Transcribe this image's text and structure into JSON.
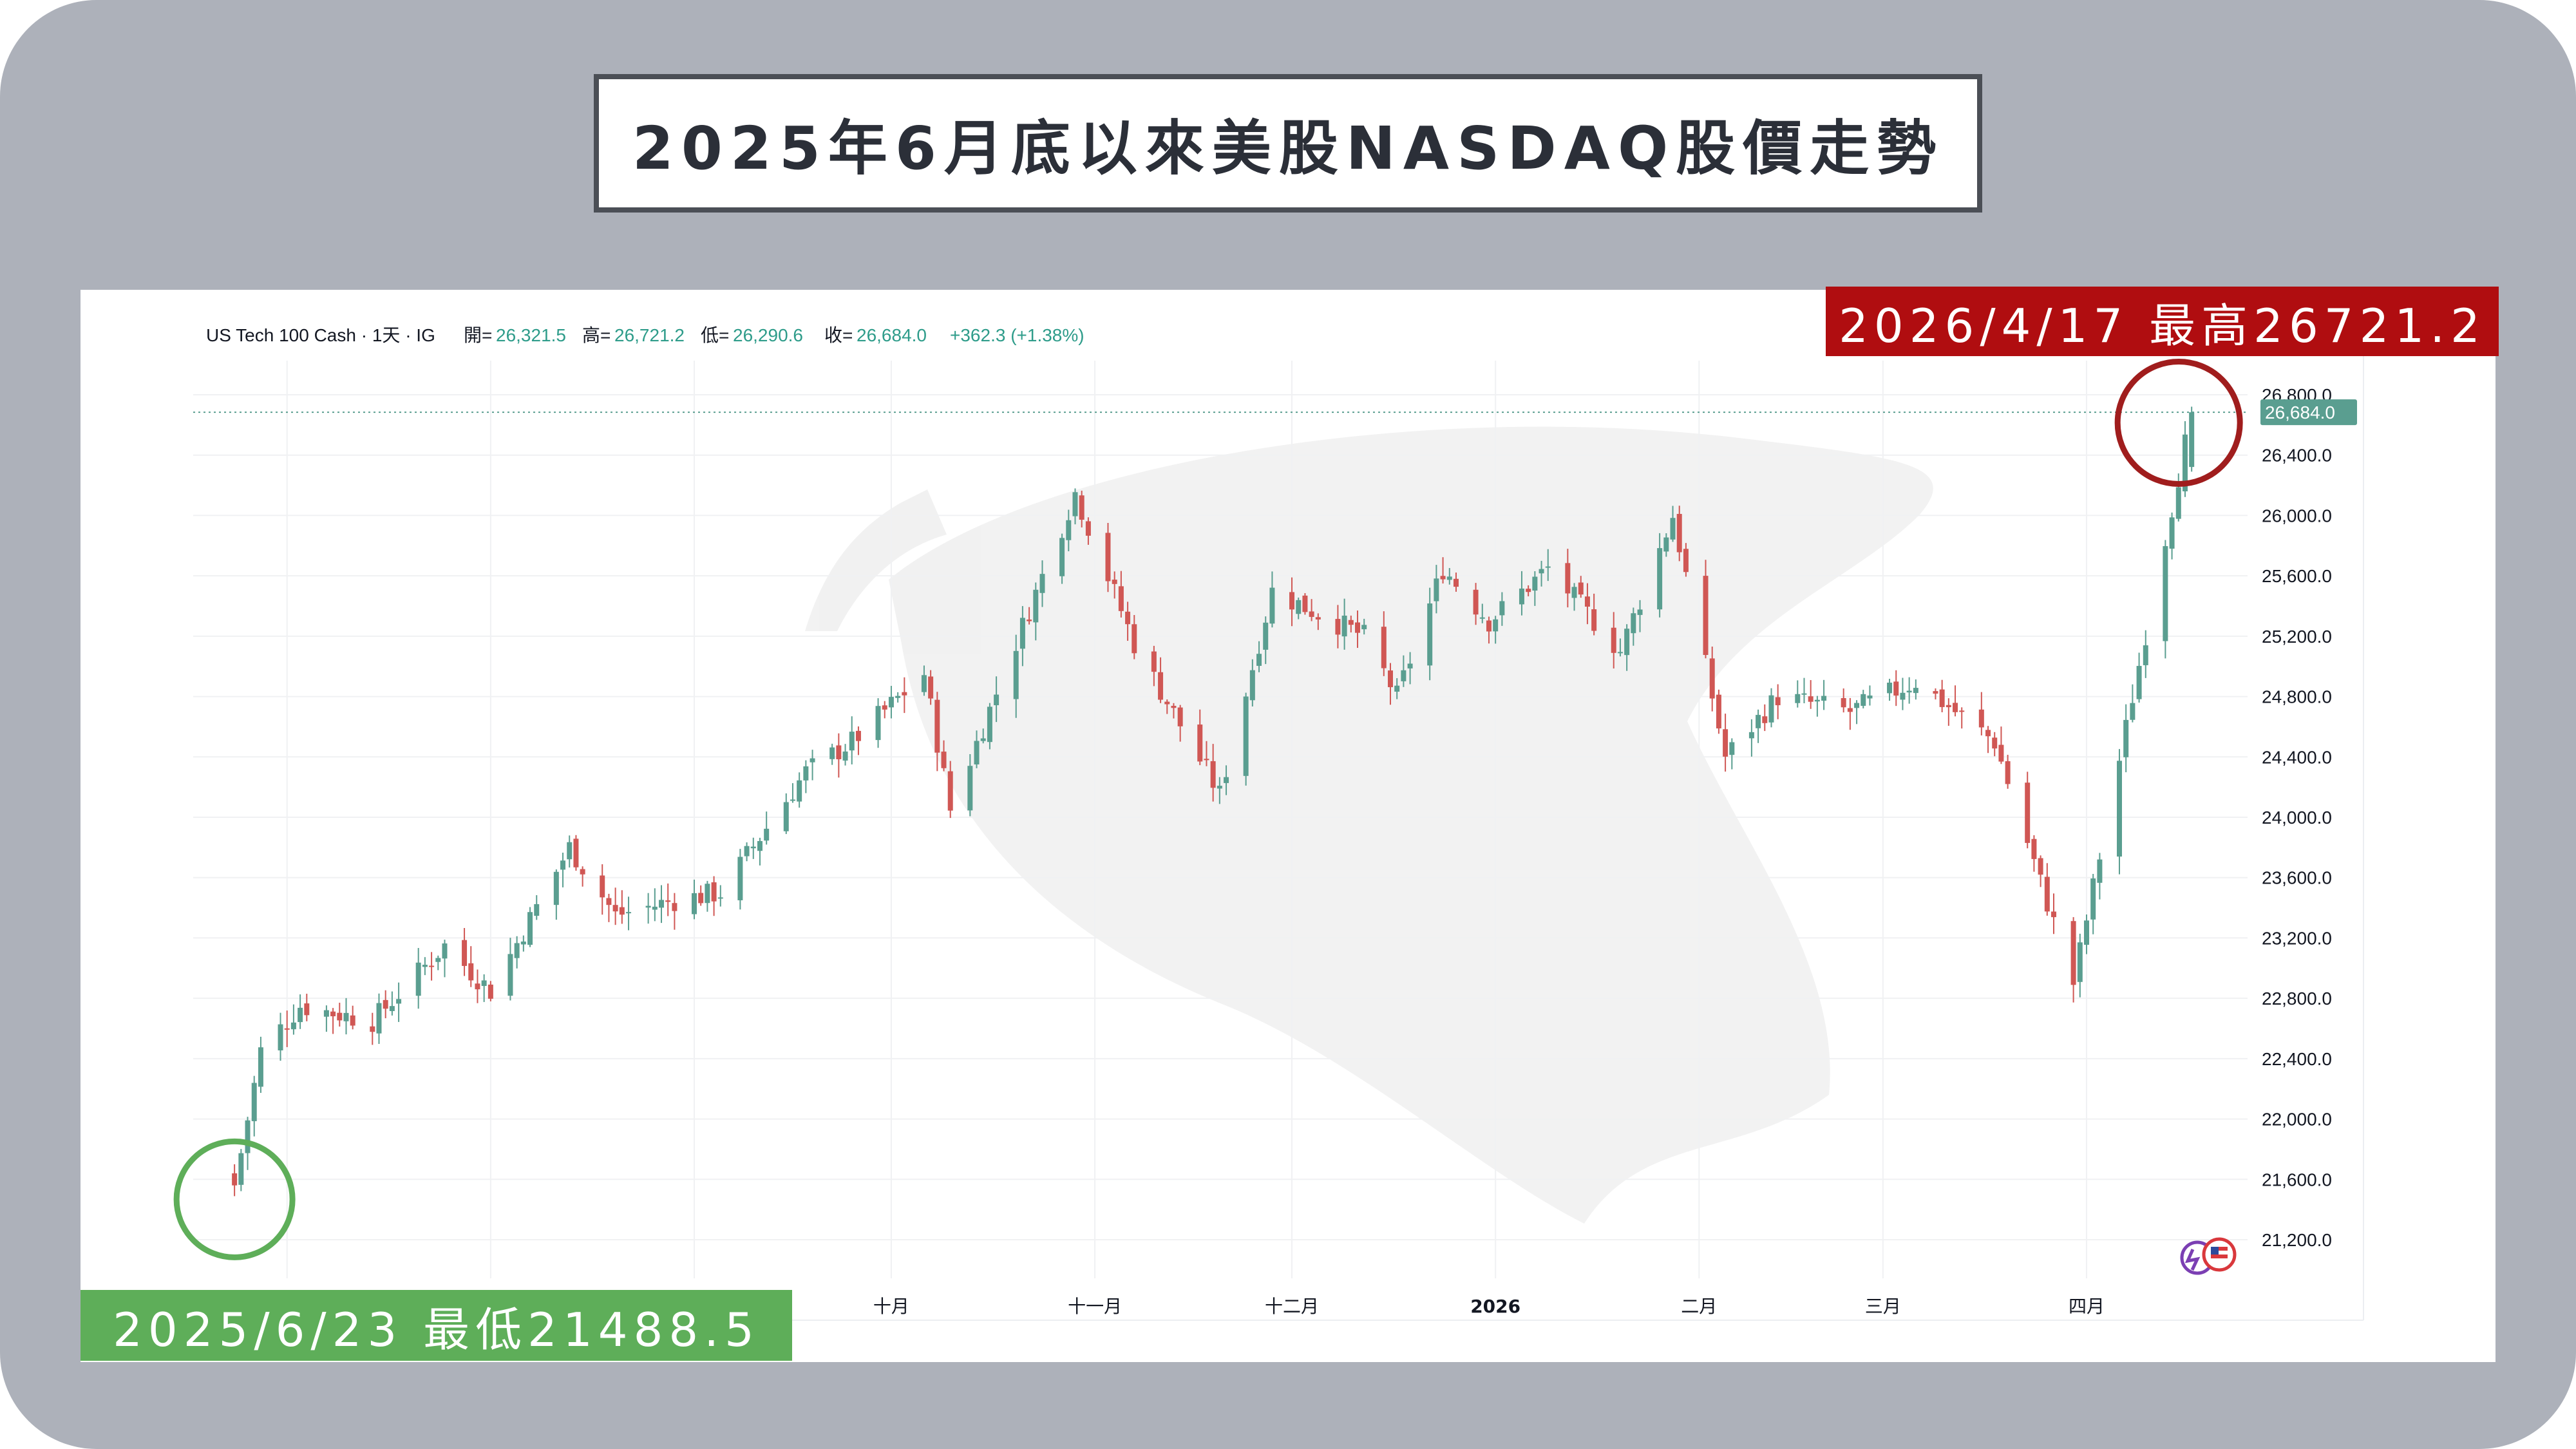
{
  "page_title": "2025年6月底以來美股NASDAQ股價走勢",
  "badges": {
    "high": "2026/4/17 最高26721.2",
    "low": "2025/6/23 最低21488.5"
  },
  "legend": {
    "symbol": "US Tech 100 Cash · 1天 · IG",
    "open_label": "開=",
    "open_value": "26,321.5",
    "high_label": "高=",
    "high_value": "26,721.2",
    "low_label": "低=",
    "low_value": "26,290.6",
    "close_label": "收=",
    "close_value": "26,684.0",
    "change": "+362.3 (+1.38%)"
  },
  "last_price_label": "26,684.0",
  "colors": {
    "up": "#5a9e90",
    "down": "#d05754",
    "high_marker": "#a01d1d",
    "low_marker": "#5eae59"
  },
  "chart_data": {
    "type": "candlestick",
    "symbol": "US Tech 100 Cash",
    "interval": "1天",
    "ylim": [
      21000,
      26950
    ],
    "y_ticks": [
      21200,
      21600,
      22000,
      22400,
      22800,
      23200,
      23600,
      24000,
      24400,
      24800,
      25200,
      25600,
      26000,
      26400,
      26800
    ],
    "y_tick_labels": [
      "21,200.0",
      "21,600.0",
      "22,000.0",
      "22,400.0",
      "22,800.0",
      "23,200.0",
      "23,600.0",
      "24,000.0",
      "24,400.0",
      "24,800.0",
      "25,200.0",
      "25,600.0",
      "26,000.0",
      "26,400.0",
      "26,800.0"
    ],
    "x_ticks": [
      {
        "date": "2025-10-01",
        "label": "十月"
      },
      {
        "date": "2025-11-01",
        "label": "十一月"
      },
      {
        "date": "2025-12-01",
        "label": "十二月"
      },
      {
        "date": "2026-01-01",
        "label": "2026"
      },
      {
        "date": "2026-02-01",
        "label": "二月"
      },
      {
        "date": "2026-03-01",
        "label": "三月"
      },
      {
        "date": "2026-04-01",
        "label": "四月"
      }
    ],
    "annotations": [
      {
        "date": "2025-06-23",
        "value": 21488.5,
        "text": "2025/6/23 最低21488.5"
      },
      {
        "date": "2026-04-17",
        "value": 26721.2,
        "text": "2026/4/17 最高26721.2"
      }
    ],
    "anchors": [
      [
        "2025-06-23",
        21550
      ],
      [
        "2025-06-27",
        22450
      ],
      [
        "2025-07-03",
        22750
      ],
      [
        "2025-07-14",
        22650
      ],
      [
        "2025-07-25",
        23150
      ],
      [
        "2025-08-01",
        22850
      ],
      [
        "2025-08-13",
        23800
      ],
      [
        "2025-08-20",
        23350
      ],
      [
        "2025-08-29",
        23450
      ],
      [
        "2025-09-05",
        23500
      ],
      [
        "2025-09-18",
        24300
      ],
      [
        "2025-09-25",
        24500
      ],
      [
        "2025-10-06",
        24950
      ],
      [
        "2025-10-10",
        24050
      ],
      [
        "2025-10-29",
        26150
      ],
      [
        "2025-11-07",
        25150
      ],
      [
        "2025-11-20",
        24150
      ],
      [
        "2025-11-28",
        25500
      ],
      [
        "2025-12-12",
        25200
      ],
      [
        "2025-12-17",
        24800
      ],
      [
        "2025-12-24",
        25650
      ],
      [
        "2025-12-31",
        25300
      ],
      [
        "2026-01-09",
        25650
      ],
      [
        "2026-01-20",
        25100
      ],
      [
        "2026-01-28",
        26000
      ],
      [
        "2026-02-05",
        24400
      ],
      [
        "2026-02-13",
        24800
      ],
      [
        "2026-02-24",
        24700
      ],
      [
        "2026-03-06",
        24900
      ],
      [
        "2026-03-18",
        24500
      ],
      [
        "2026-03-30",
        22900
      ],
      [
        "2026-04-08",
        24800
      ],
      [
        "2026-04-17",
        26684
      ]
    ],
    "last_candle": {
      "date": "2026-04-17",
      "open": 26321.5,
      "high": 26721.2,
      "low": 26290.6,
      "close": 26684.0,
      "change": 362.3,
      "change_pct": 1.38
    }
  }
}
